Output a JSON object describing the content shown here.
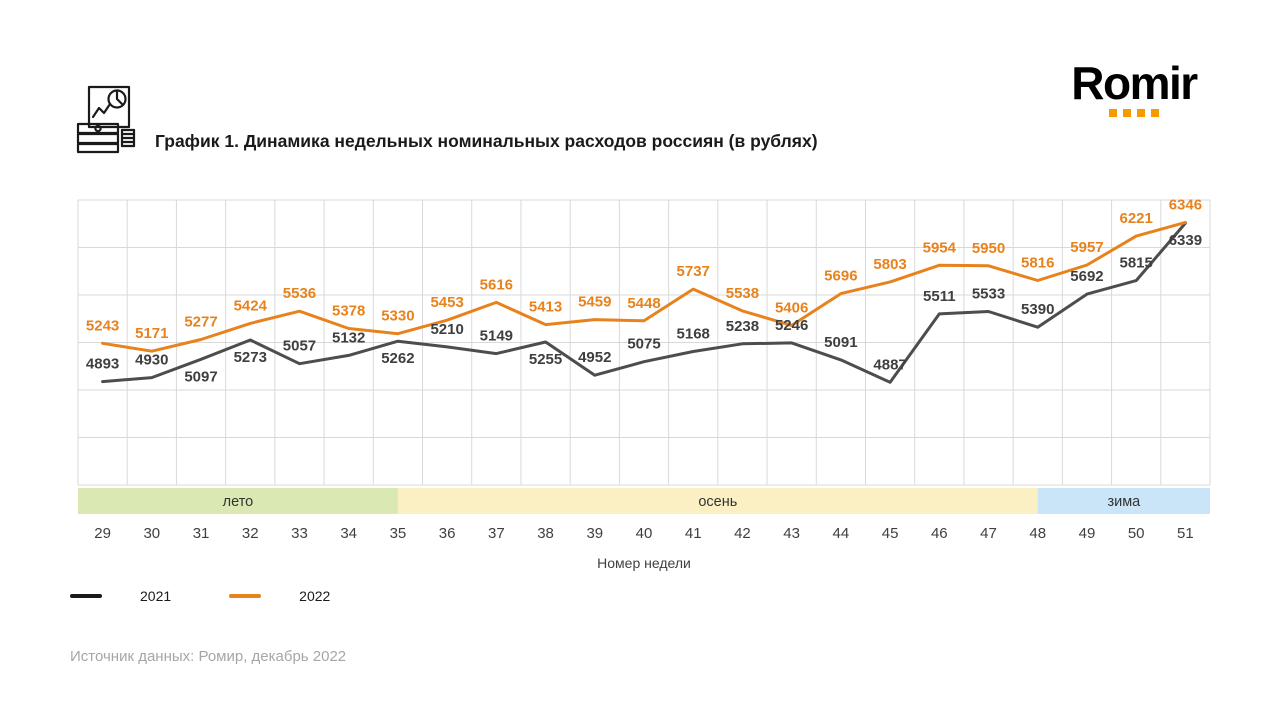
{
  "header": {
    "title": "График 1. Динамика недельных номинальных расходов россиян (в рублях)",
    "logo_text": "Romir"
  },
  "chart_data": {
    "type": "line",
    "title": "Динамика недельных номинальных расходов россиян (в рублях)",
    "xlabel": "Номер недели",
    "ylabel": "",
    "categories": [
      29,
      30,
      31,
      32,
      33,
      34,
      35,
      36,
      37,
      38,
      39,
      40,
      41,
      42,
      43,
      44,
      45,
      46,
      47,
      48,
      49,
      50,
      51
    ],
    "series": [
      {
        "name": "2021",
        "color": "#4D4D4D",
        "label_color": "#3F3F3F",
        "values": [
          4893,
          4930,
          5097,
          5273,
          5057,
          5132,
          5262,
          5210,
          5149,
          5255,
          4952,
          5075,
          5168,
          5238,
          5246,
          5091,
          4887,
          5511,
          5533,
          5390,
          5692,
          5815,
          6339
        ],
        "label_sides": [
          "above",
          "above",
          "below",
          "below",
          "above",
          "above",
          "below",
          "above",
          "above",
          "below",
          "above",
          "above",
          "above",
          "above",
          "above",
          "above",
          "above",
          "above",
          "above",
          "above",
          "above",
          "above",
          "below"
        ]
      },
      {
        "name": "2022",
        "color": "#E8821C",
        "label_color": "#E8821C",
        "values": [
          5243,
          5171,
          5277,
          5424,
          5536,
          5378,
          5330,
          5453,
          5616,
          5413,
          5459,
          5448,
          5737,
          5538,
          5406,
          5696,
          5803,
          5954,
          5950,
          5816,
          5957,
          6221,
          6346
        ],
        "label_sides": [
          "above",
          "above",
          "above",
          "above",
          "above",
          "above",
          "above",
          "above",
          "above",
          "above",
          "above",
          "above",
          "above",
          "above",
          "above",
          "above",
          "above",
          "above",
          "above",
          "above",
          "above",
          "above",
          "above"
        ]
      }
    ],
    "ylim": [
      3950,
      6550
    ],
    "grid": true,
    "grid_rows": 6,
    "legend_position": "bottom-left",
    "seasons": [
      {
        "label": "лето",
        "color": "#DAE8B4",
        "start_week": 29,
        "end_week": 35
      },
      {
        "label": "осень",
        "color": "#FAF0C4",
        "start_week": 35,
        "end_week": 48
      },
      {
        "label": "зима",
        "color": "#CBE5F8",
        "start_week": 48,
        "end_week": 51
      }
    ]
  },
  "legend": {
    "items": [
      {
        "label": "2021",
        "color": "#1a1a1a"
      },
      {
        "label": "2022",
        "color": "#E8821C"
      }
    ]
  },
  "source": "Источник данных: Ромир, декабрь 2022",
  "colors": {
    "accent_orange": "#E8821C",
    "logo_orange": "#F59B00",
    "grid": "#D9D9D9",
    "text_gray": "#404040",
    "season_text": "#333333",
    "source_gray": "#A6A6A6"
  }
}
